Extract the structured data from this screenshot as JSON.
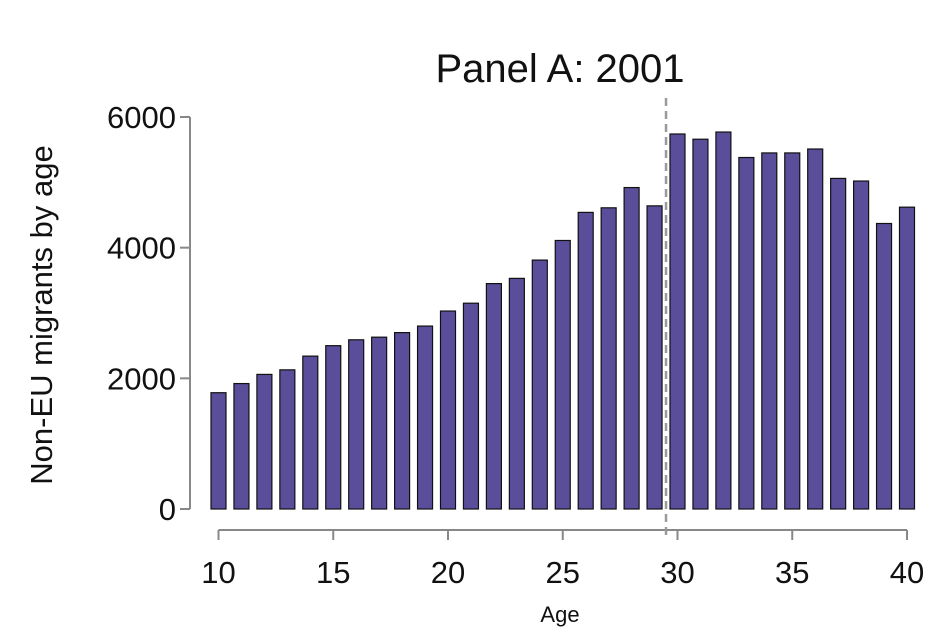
{
  "chart_data": {
    "type": "bar",
    "title": "Panel A: 2001",
    "xlabel": "Age",
    "ylabel": "Non-EU migrants by age",
    "x": [
      10,
      11,
      12,
      13,
      14,
      15,
      16,
      17,
      18,
      19,
      20,
      21,
      22,
      23,
      24,
      25,
      26,
      27,
      28,
      29,
      30,
      31,
      32,
      33,
      34,
      35,
      36,
      37,
      38,
      39,
      40
    ],
    "values": [
      1780,
      1920,
      2060,
      2130,
      2340,
      2500,
      2590,
      2630,
      2700,
      2800,
      3030,
      3150,
      3450,
      3530,
      3810,
      4110,
      4540,
      4610,
      4920,
      4640,
      5740,
      5660,
      5770,
      5380,
      5450,
      5450,
      5510,
      5060,
      5020,
      4370,
      4620
    ],
    "xticks": [
      10,
      15,
      20,
      25,
      30,
      35,
      40
    ],
    "yticks": [
      0,
      2000,
      4000,
      6000
    ],
    "xlim": [
      10,
      40
    ],
    "ylim": [
      0,
      6000
    ],
    "cutoff_x": 29.5,
    "grid": false,
    "bar_color": "#5a4e9b",
    "bar_edge_color": "#111111",
    "cutoff_line_color": "#9a9a9a"
  }
}
